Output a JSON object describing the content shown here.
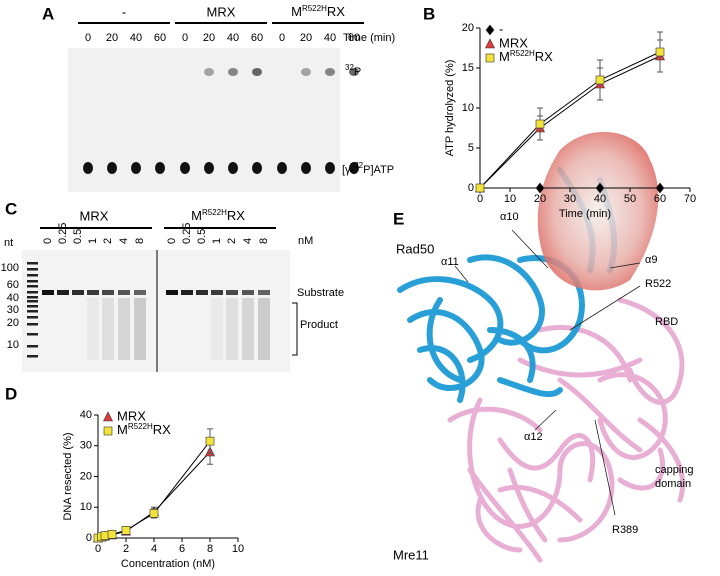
{
  "panel_labels": [
    "A",
    "B",
    "C",
    "D",
    "E"
  ],
  "gel_a": {
    "groups": [
      "-",
      "MRX",
      [
        {
          "text": "M"
        },
        {
          "text": "R522H",
          "sup": true
        },
        {
          "text": "RX"
        }
      ]
    ],
    "times": [
      0,
      20,
      40,
      60
    ],
    "time_label": "Time (min)",
    "band_labels": [
      [
        {
          "text": "32",
          "sup": true
        },
        {
          "text": "P"
        }
      ],
      [
        {
          "text": "[γ-"
        },
        {
          "text": "32",
          "sup": true
        },
        {
          "text": "P]ATP"
        }
      ]
    ]
  },
  "gel_c": {
    "groups": [
      "MRX",
      [
        {
          "text": "M"
        },
        {
          "text": "R522H",
          "sup": true
        },
        {
          "text": "RX"
        }
      ]
    ],
    "concentrations": [
      0,
      0.25,
      0.5,
      1,
      2,
      4,
      8
    ],
    "unit": "nM",
    "size_unit": "nt",
    "markers": [
      100,
      60,
      40,
      30,
      20,
      10
    ],
    "band_labels": [
      "Substrate",
      "Product"
    ]
  },
  "structure": {
    "labels": [
      "Rad50",
      "α11",
      "α10",
      "α9",
      "R522",
      "RBD",
      "α12",
      "capping",
      "domain",
      "R389",
      "Mre11"
    ]
  },
  "chart_data": [
    {
      "type": "line",
      "x": [
        0,
        20,
        40,
        60
      ],
      "xlim": [
        0,
        70
      ],
      "xticks": [
        0,
        10,
        20,
        30,
        40,
        50,
        60,
        70
      ],
      "ylim": [
        0,
        20
      ],
      "yticks": [
        0,
        5,
        10,
        15,
        20
      ],
      "xlabel": "Time (min)",
      "ylabel": "ATP hydrolyzed (%)",
      "legend": "upper left",
      "line_color": "#000000",
      "series": [
        {
          "name": "-",
          "color": "#000000",
          "marker": "diamond",
          "values": [
            0,
            0,
            0,
            0
          ]
        },
        {
          "name": "MRX",
          "color": "#e03c3c",
          "marker": "triangle",
          "values": [
            0,
            7.5,
            13,
            16.5
          ],
          "errors": [
            0,
            1.5,
            2,
            2
          ]
        },
        {
          "name": [
            {
              "text": "M"
            },
            {
              "text": "R522H",
              "sup": true
            },
            {
              "text": "RX"
            }
          ],
          "color": "#f2e33a",
          "marker": "square",
          "values": [
            0,
            8,
            13.5,
            17
          ],
          "errors": [
            0,
            2,
            2.5,
            2.5
          ]
        }
      ]
    },
    {
      "type": "line",
      "x": [
        0,
        0.25,
        0.5,
        1,
        2,
        4,
        8
      ],
      "xlim": [
        0,
        10
      ],
      "xticks": [
        0,
        2,
        4,
        6,
        8,
        10
      ],
      "ylim": [
        0,
        40
      ],
      "yticks": [
        0,
        10,
        20,
        30,
        40
      ],
      "xlabel": "Concentration (nM)",
      "ylabel": "DNA resected (%)",
      "legend": "upper left",
      "line_color": "#000000",
      "series": [
        {
          "name": "MRX",
          "color": "#e03c3c",
          "marker": "triangle",
          "values": [
            0,
            0.3,
            0.6,
            1,
            2.2,
            8.5,
            28
          ],
          "errors": [
            0,
            0,
            0,
            0,
            0.5,
            1.5,
            4
          ]
        },
        {
          "name": [
            {
              "text": "M"
            },
            {
              "text": "R522H",
              "sup": true
            },
            {
              "text": "RX"
            }
          ],
          "color": "#f2e33a",
          "marker": "square",
          "values": [
            0,
            0.4,
            0.8,
            1.2,
            2.5,
            8,
            31.5
          ],
          "errors": [
            0,
            0,
            0,
            0,
            0.5,
            1.5,
            4
          ]
        }
      ]
    }
  ]
}
